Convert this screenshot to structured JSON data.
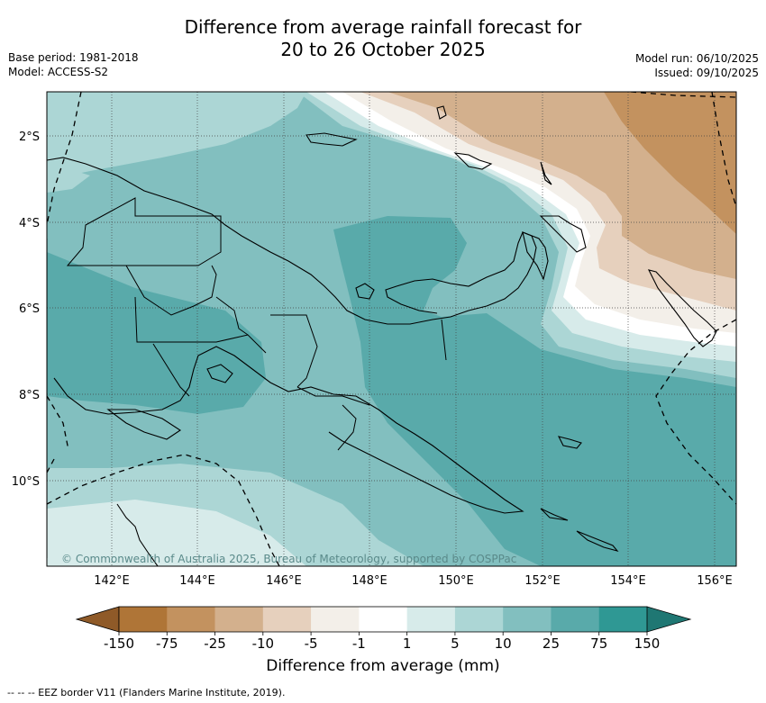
{
  "title_line1": "Difference from average rainfall forecast for",
  "title_line2": "20 to 26 October 2025",
  "meta_left": {
    "base_period": "Base period: 1981-2018",
    "model": "Model: ACCESS-S2"
  },
  "meta_right": {
    "model_run": "Model run: 06/10/2025",
    "issued": "Issued: 09/10/2025"
  },
  "map": {
    "lon_labels": [
      "142°E",
      "144°E",
      "146°E",
      "148°E",
      "150°E",
      "152°E",
      "154°E",
      "156°E"
    ],
    "lat_labels": [
      "2°S",
      "4°S",
      "6°S",
      "8°S",
      "10°S"
    ],
    "lon_range": [
      140.5,
      156.5
    ],
    "lat_range": [
      -12,
      -1
    ],
    "grid": true
  },
  "copyright": "© Commonwealth of Australia 2025, Bureau of Meteorology, supported by COSPPac",
  "colorbar": {
    "title": "Difference from average (mm)",
    "boundaries": [
      "-150",
      "-75",
      "-25",
      "-10",
      "-5",
      "-1",
      "1",
      "5",
      "10",
      "25",
      "75",
      "150"
    ],
    "colors": [
      "#af7537",
      "#c3925f",
      "#d3b08d",
      "#e6d0bd",
      "#f3efe9",
      "#ffffff",
      "#d7ebea",
      "#acd6d5",
      "#82bfbf",
      "#59aaaa",
      "#2f9894"
    ],
    "extend_low_color": "#8f5a28",
    "extend_high_color": "#1f7773"
  },
  "footnote": "-- -- -- EEZ border V11 (Flanders Marine Institute, 2019)."
}
